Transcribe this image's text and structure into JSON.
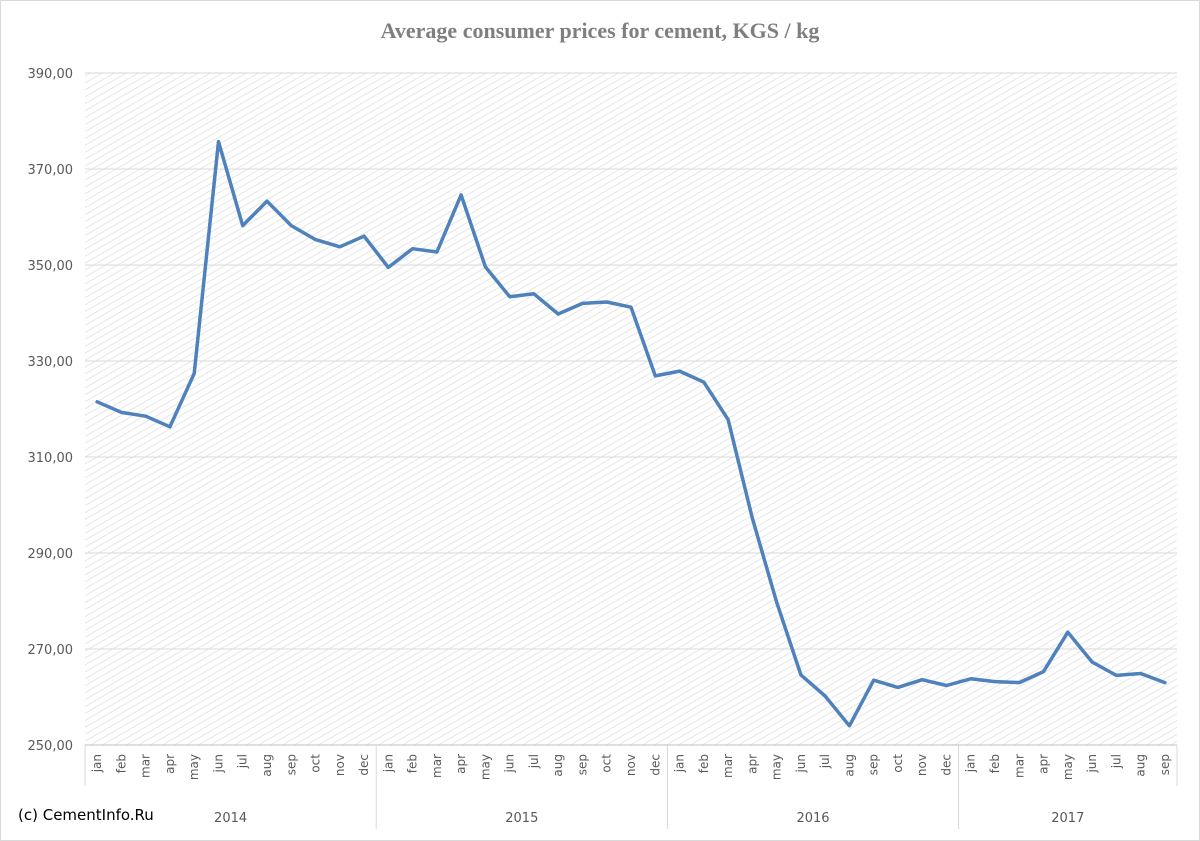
{
  "credit": "(c) CementInfo.Ru",
  "chart_data": {
    "type": "line",
    "title": "Average consumer prices for cement, KGS / kg",
    "xlabel": "",
    "ylabel": "",
    "ylim": [
      250,
      390
    ],
    "yticks": [
      "250,00",
      "270,00",
      "290,00",
      "310,00",
      "330,00",
      "350,00",
      "370,00",
      "390,00"
    ],
    "grid": true,
    "legend": "none",
    "line_color": "#4f81bd",
    "categories": [
      "jan",
      "feb",
      "mar",
      "apr",
      "may",
      "jun",
      "jul",
      "aug",
      "sep",
      "oct",
      "nov",
      "dec",
      "jan",
      "feb",
      "mar",
      "apr",
      "may",
      "jun",
      "jul",
      "aug",
      "sep",
      "oct",
      "nov",
      "dec",
      "jan",
      "feb",
      "mar",
      "apr",
      "may",
      "jun",
      "jul",
      "aug",
      "sep",
      "oct",
      "nov",
      "dec",
      "jan",
      "feb",
      "mar",
      "apr",
      "may",
      "jun",
      "jul",
      "aug",
      "sep"
    ],
    "groups": [
      {
        "label": "2014",
        "count": 12
      },
      {
        "label": "2015",
        "count": 12
      },
      {
        "label": "2016",
        "count": 12
      },
      {
        "label": "2017",
        "count": 9
      }
    ],
    "values": [
      321.5,
      319.3,
      318.5,
      316.3,
      327.4,
      375.7,
      358.2,
      363.3,
      358.2,
      355.3,
      353.8,
      356.0,
      349.5,
      353.4,
      352.7,
      364.6,
      349.6,
      343.4,
      344.0,
      339.8,
      342.0,
      342.3,
      341.2,
      326.9,
      327.9,
      325.6,
      317.8,
      297.3,
      279.8,
      264.6,
      260.2,
      254.0,
      263.5,
      262.0,
      263.6,
      262.4,
      263.8,
      263.2,
      263.0,
      265.3,
      273.5,
      267.3,
      264.5,
      264.9,
      263.0
    ]
  }
}
